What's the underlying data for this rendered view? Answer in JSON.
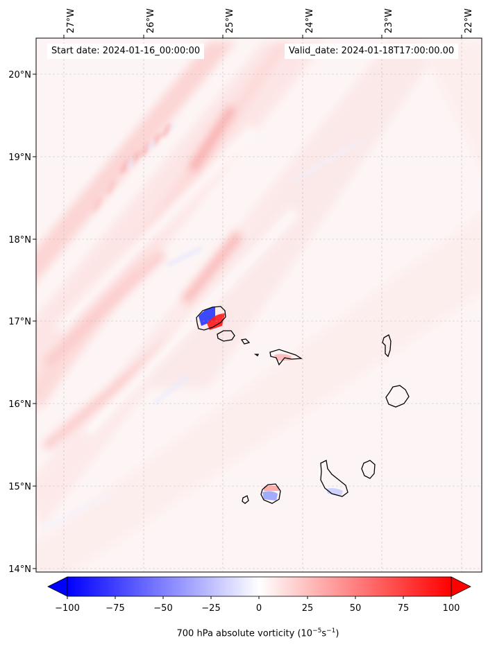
{
  "map": {
    "field": "700 hPa absolute vorticity",
    "lon_labels": [
      "27°W",
      "26°W",
      "25°W",
      "24°W",
      "23°W",
      "22°W"
    ],
    "lat_labels": [
      "20°N",
      "19°N",
      "18°N",
      "17°N",
      "16°N",
      "15°N",
      "14°N"
    ],
    "lon_range": [
      -27.35,
      -21.8
    ],
    "lat_range": [
      13.95,
      20.4
    ]
  },
  "annotations": {
    "start_date": "Start date: 2024-01-16_00:00:00",
    "valid_date": "Valid_date: 2024-01-18T17:00:00.00"
  },
  "colorbar": {
    "ticks": [
      "−100",
      "−75",
      "−50",
      "−25",
      "0",
      "25",
      "50",
      "75",
      "100"
    ],
    "label_prefix": "700 hPa absolute vorticity (10",
    "label_exp1": "−5",
    "label_mid": "s",
    "label_exp2": "−1",
    "label_suffix": ")",
    "colormap": "bwr",
    "min": -100,
    "max": 100,
    "extend": "both",
    "neg_color": "#0000ff",
    "zero_color": "#ffffff",
    "pos_color": "#ff0000"
  }
}
